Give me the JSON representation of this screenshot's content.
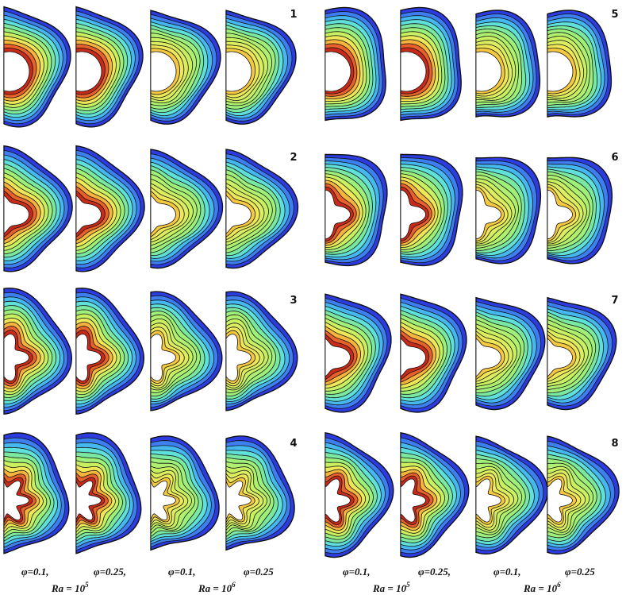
{
  "panel_labels": [
    "1",
    "2",
    "3",
    "4",
    "5",
    "6",
    "7",
    "8"
  ],
  "captions": {
    "left": {
      "phi": [
        "φ=0.1,",
        "φ=0.25,",
        "φ=0.1,",
        "φ=0.25"
      ],
      "ra": [
        {
          "text": "Ra = 10",
          "exponent": "5"
        },
        {
          "text": "Ra = 10",
          "exponent": "6"
        }
      ]
    },
    "right": {
      "phi": [
        "φ=0.1,",
        "φ=0.25,",
        "φ=0.1,",
        "φ=0.25"
      ],
      "ra": [
        {
          "text": "Ra = 10",
          "exponent": "5"
        },
        {
          "text": "Ra = 10",
          "exponent": "6"
        }
      ]
    }
  }
}
